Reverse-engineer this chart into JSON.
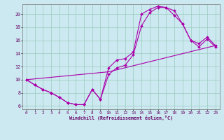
{
  "xlabel": "Windchill (Refroidissement éolien,°C)",
  "bg_color": "#cce8f0",
  "line_color": "#aa00aa",
  "grid_color": "#99ccbb",
  "xlim": [
    -0.5,
    23.5
  ],
  "ylim": [
    5.5,
    21.5
  ],
  "xticks": [
    0,
    1,
    2,
    3,
    4,
    5,
    6,
    7,
    8,
    9,
    10,
    11,
    12,
    13,
    14,
    15,
    16,
    17,
    18,
    19,
    20,
    21,
    22,
    23
  ],
  "yticks": [
    6,
    8,
    10,
    12,
    14,
    16,
    18,
    20
  ],
  "curve1_x": [
    0,
    1,
    2,
    3,
    4,
    5,
    6,
    7,
    8,
    9,
    10,
    11,
    12,
    13,
    14,
    15,
    16,
    17,
    18,
    19,
    20,
    21,
    22,
    23
  ],
  "curve1_y": [
    10.0,
    9.2,
    8.5,
    8.0,
    7.3,
    6.5,
    6.2,
    6.2,
    8.5,
    7.0,
    11.8,
    13.0,
    13.2,
    14.2,
    20.0,
    20.7,
    21.2,
    21.0,
    19.8,
    18.5,
    16.0,
    15.0,
    16.2,
    15.0
  ],
  "curve2_x": [
    0,
    1,
    2,
    3,
    4,
    5,
    6,
    7,
    8,
    9,
    10,
    11,
    12,
    13,
    14,
    15,
    16,
    17,
    18,
    19,
    20,
    21,
    22,
    23
  ],
  "curve2_y": [
    10.0,
    9.2,
    8.5,
    8.0,
    7.3,
    6.5,
    6.2,
    6.2,
    8.5,
    7.0,
    10.8,
    11.8,
    12.2,
    13.8,
    18.2,
    20.2,
    21.0,
    21.0,
    20.5,
    18.5,
    16.0,
    15.5,
    16.5,
    15.2
  ],
  "line_x": [
    0,
    10,
    23
  ],
  "line_y": [
    10.0,
    11.2,
    15.2
  ]
}
